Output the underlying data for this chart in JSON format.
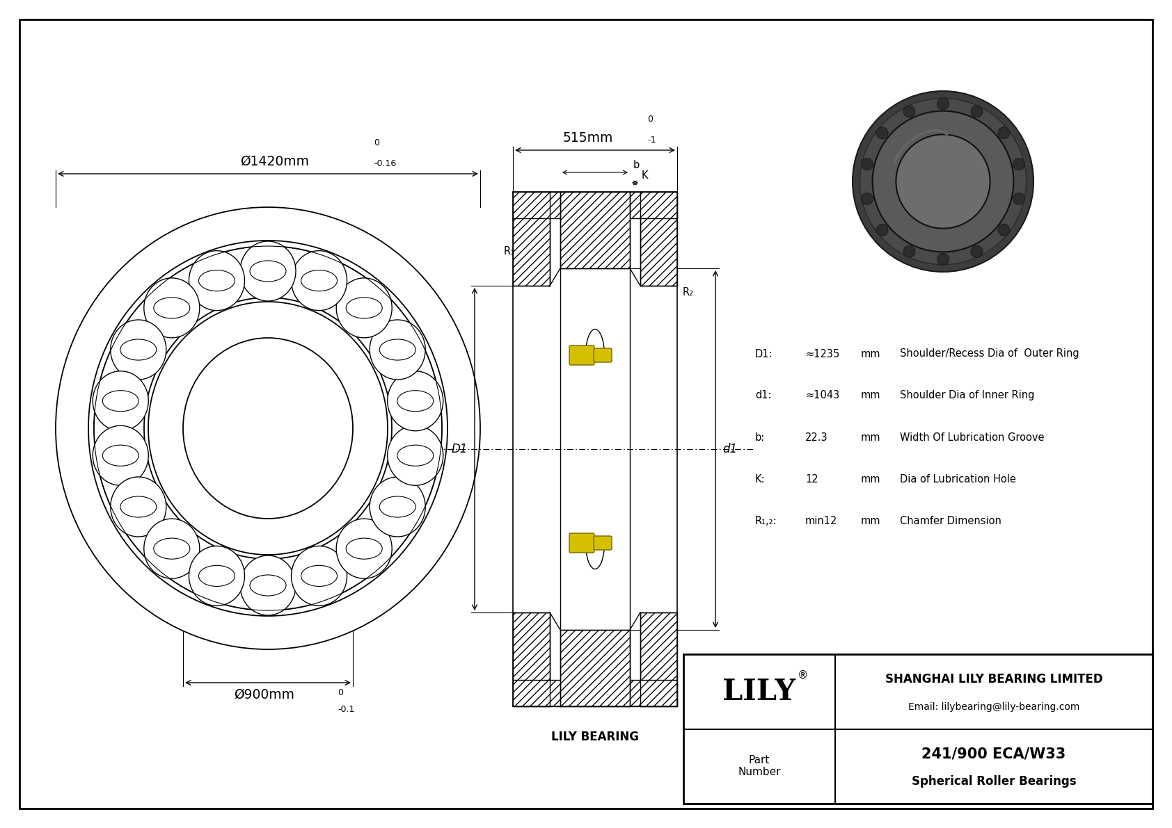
{
  "bg_color": "#ffffff",
  "title": "241/900 ECA/W33",
  "subtitle": "Spherical Roller Bearings",
  "company": "SHANGHAI LILY BEARING LIMITED",
  "email": "Email: lilybearing@lily-bearing.com",
  "logo_text": "LILY",
  "part_label_line1": "Part",
  "part_label_line2": "Number",
  "outer_dim": "Ø1420mm",
  "outer_tol_top": "0",
  "outer_tol_bot": "-0.16",
  "inner_dim": "Ø900mm",
  "inner_tol_top": "0",
  "inner_tol_bot": "-0.1",
  "width_dim": "515mm",
  "width_tol_top": "0",
  "width_tol_bot": "-1",
  "specs": [
    [
      "D1:",
      "≈1235",
      "mm",
      "Shoulder/Recess Dia of  Outer Ring"
    ],
    [
      "d1:",
      "≈1043",
      "mm",
      "Shoulder Dia of Inner Ring"
    ],
    [
      "b:",
      "22.3",
      "mm",
      "Width Of Lubrication Groove"
    ],
    [
      "K:",
      "12",
      "mm",
      "Dia of Lubrication Hole"
    ],
    [
      "R₁,₂:",
      "min12",
      "mm",
      "Chamfer Dimension"
    ]
  ],
  "lily_bearing_label": "LILY BEARING",
  "num_rollers": 18,
  "yellow_color": "#d4c000",
  "hatch_color": "#000000"
}
